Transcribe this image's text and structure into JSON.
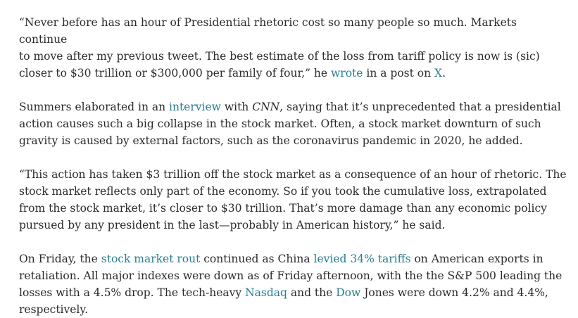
{
  "paragraphs": [
    {
      "lines": [
        "“Never before has an hour of Presidential rhetoric cost so many people so much. Markets continue",
        "to move after my previous tweet. The best estimate of the loss from tariff policy is now is (sic)"
      ],
      "l3_a": "closer to $30 trillion or $300,000 per family of four,” he ",
      "l3_link1": "wrote",
      "l3_b": " in a post on ",
      "l3_link2": "X",
      "l3_c": "."
    },
    {
      "l1_a": "Summers elaborated in an ",
      "l1_link": "interview",
      "l1_b": " with ",
      "l1_em": "CNN",
      "l1_c": ", saying that it’s unprecedented that a presidential",
      "lines": [
        "action causes such a big collapse in the stock market. Often, a stock market downturn of such",
        "gravity is caused by external factors, such as the coronavirus pandemic in 2020, he added."
      ]
    },
    {
      "lines": [
        "“This action has taken $3 trillion off the stock market as a consequence of an hour of rhetoric. The",
        "stock market reflects only part of the economy. So if you took the cumulative loss, extrapolated",
        "from the stock market, it’s closer to $30 trillion. That’s more damage than any economic policy",
        "pursued by any president in the last—probably in American history,” he said."
      ]
    },
    {
      "l1_a": "On Friday, the ",
      "l1_link1": "stock market rout",
      "l1_b": " continued as China ",
      "l1_link2": "levied 34% tariffs",
      "l1_c": " on American exports in",
      "l2": "retaliation. All major indexes were down as of Friday afternoon, with the the S&P 500 leading the",
      "l3_a": "losses with a 4.5% drop. The tech-heavy ",
      "l3_link1": "Nasdaq",
      "l3_b": " and the ",
      "l3_link2": "Dow",
      "l3_c": " Jones were down 4.2% and 4.4%,",
      "l4": "respectively."
    }
  ],
  "colors": {
    "text": "#2b2b2b",
    "link": "#2a7d8e",
    "background": "#ffffff"
  }
}
